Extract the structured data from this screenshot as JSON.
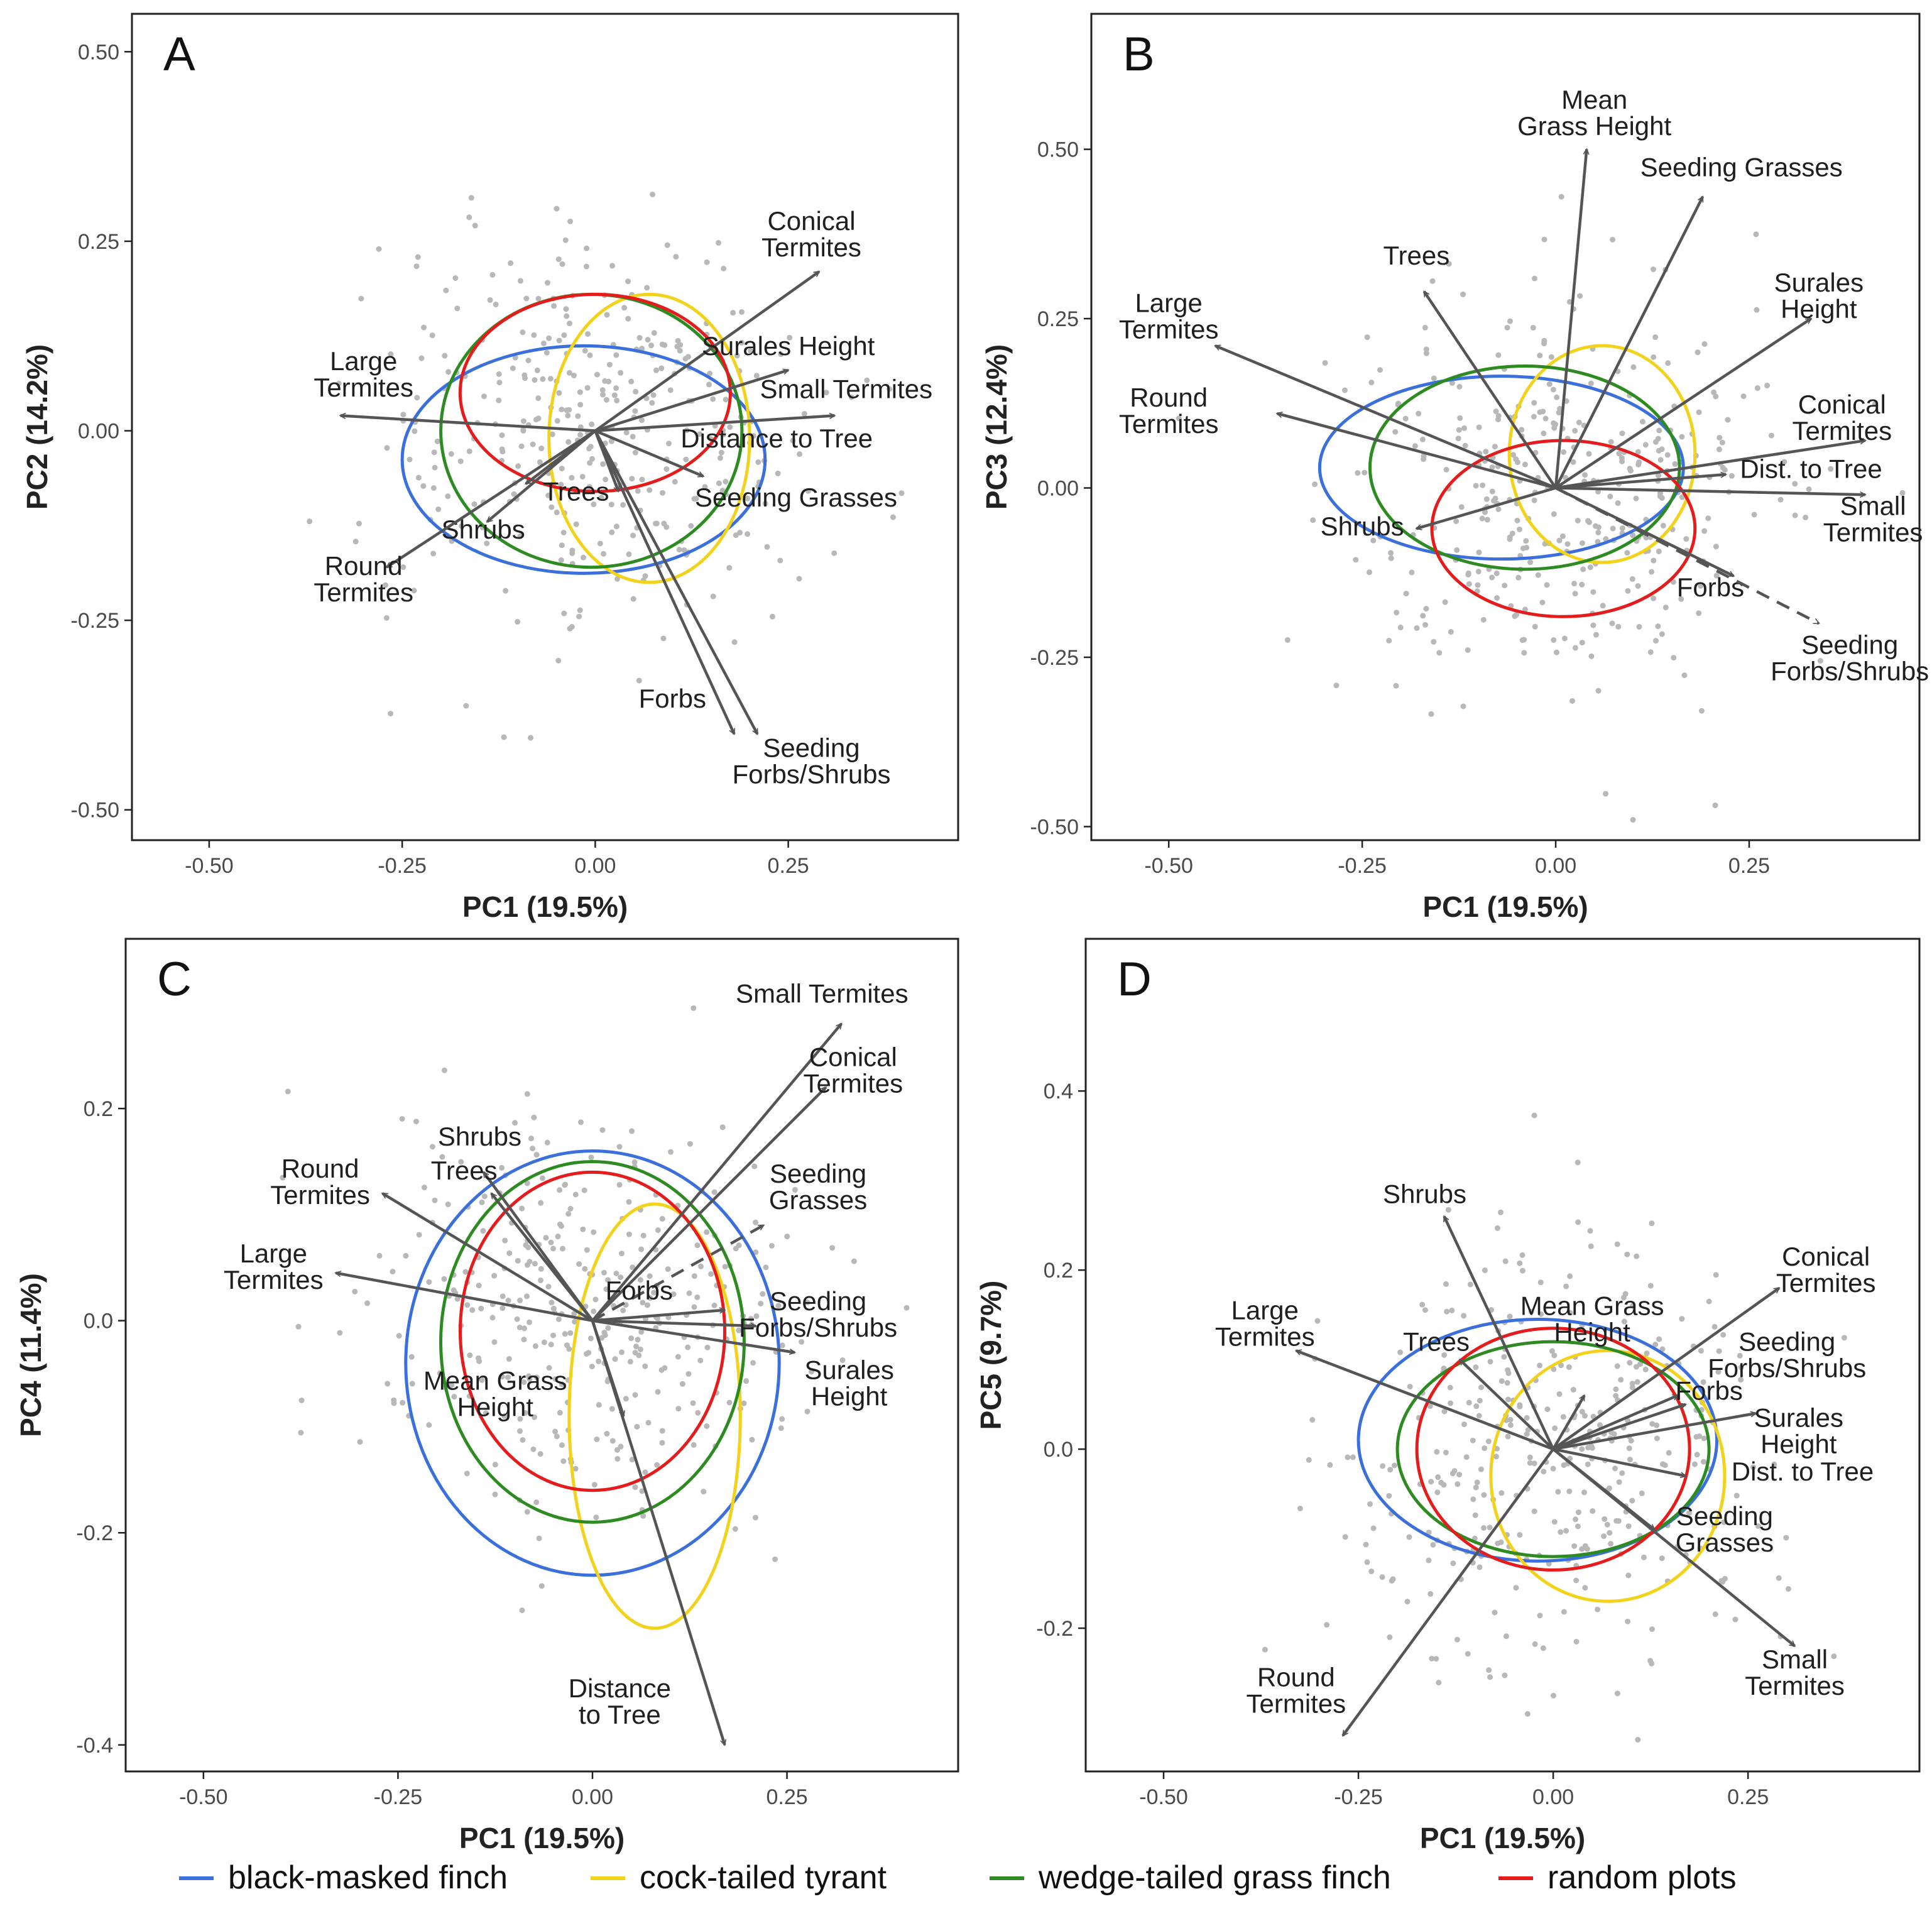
{
  "legend": {
    "items": [
      {
        "label": "black-masked finch",
        "color": "#3a6fdc"
      },
      {
        "label": "cock-tailed tyrant",
        "color": "#f2d21a"
      },
      {
        "label": "wedge-tailed grass finch",
        "color": "#2e8b22"
      },
      {
        "label": "random plots",
        "color": "#e51c1c"
      }
    ]
  },
  "colors": {
    "points": "#b8b8b8",
    "arrows": "#555555",
    "frame": "#222222"
  },
  "chart_data": [
    {
      "panel": "A",
      "type": "scatter",
      "xlabel": "PC1 (19.5%)",
      "ylabel": "PC2 (14.2%)",
      "xlim": [
        -0.6,
        0.47
      ],
      "ylim": [
        -0.54,
        0.55
      ],
      "xticks": [
        -0.5,
        -0.25,
        0.0,
        0.25
      ],
      "xtick_labels": [
        "-0.50",
        "-0.25",
        "0.00",
        "0.25"
      ],
      "yticks": [
        0.5,
        0.25,
        0.0,
        -0.25,
        -0.5
      ],
      "ytick_labels": [
        "0.50",
        "0.25",
        "0.00",
        "-0.25",
        "-0.50"
      ],
      "grid": false,
      "loadings": [
        {
          "label": "Conical\nTermites",
          "x": 0.29,
          "y": 0.21,
          "lx": 0.28,
          "ly": 0.265
        },
        {
          "label": "Surales Height",
          "x": 0.25,
          "y": 0.08,
          "lx": 0.25,
          "ly": 0.1
        },
        {
          "label": "Small Termites",
          "x": 0.31,
          "y": 0.02,
          "lx": 0.325,
          "ly": 0.043
        },
        {
          "label": "Distance to Tree",
          "x": 0.14,
          "y": -0.06,
          "lx": 0.235,
          "ly": -0.022
        },
        {
          "label": "Seeding Grasses",
          "x": 0.03,
          "y": -0.08,
          "lx": 0.26,
          "ly": -0.1
        },
        {
          "label": "Large\nTermites",
          "x": -0.33,
          "y": 0.02,
          "lx": -0.3,
          "ly": 0.08
        },
        {
          "label": "Trees",
          "x": -0.09,
          "y": -0.07,
          "lx": -0.025,
          "ly": -0.092
        },
        {
          "label": "Shrubs",
          "x": -0.14,
          "y": -0.12,
          "lx": -0.145,
          "ly": -0.142
        },
        {
          "label": "Round\nTermites",
          "x": -0.27,
          "y": -0.18,
          "lx": -0.3,
          "ly": -0.19
        },
        {
          "label": "Forbs",
          "x": 0.18,
          "y": -0.4,
          "lx": 0.1,
          "ly": -0.365
        },
        {
          "label": "Seeding\nForbs/Shrubs",
          "x": 0.21,
          "y": -0.4,
          "lx": 0.28,
          "ly": -0.43,
          "dashed": false
        }
      ],
      "ellipses": [
        {
          "group": "black-masked finch",
          "cx": -0.015,
          "cy": -0.038,
          "rx": 0.235,
          "ry": 0.15
        },
        {
          "group": "cock-tailed tyrant",
          "cx": 0.07,
          "cy": -0.01,
          "rx": 0.13,
          "ry": 0.19
        },
        {
          "group": "wedge-tailed grass finch",
          "cx": -0.005,
          "cy": 0.0,
          "rx": 0.195,
          "ry": 0.18
        },
        {
          "group": "random plots",
          "cx": 0.0,
          "cy": 0.05,
          "rx": 0.175,
          "ry": 0.13
        }
      ],
      "points_count": 360
    },
    {
      "panel": "B",
      "type": "scatter",
      "xlabel": "PC1 (19.5%)",
      "ylabel": "PC3 (12.4%)",
      "xlim": [
        -0.6,
        0.47
      ],
      "ylim": [
        -0.52,
        0.7
      ],
      "xticks": [
        -0.5,
        -0.25,
        0.0,
        0.25
      ],
      "xtick_labels": [
        "-0.50",
        "-0.25",
        "0.00",
        "0.25"
      ],
      "yticks": [
        0.5,
        0.25,
        0.0,
        -0.25,
        -0.5
      ],
      "ytick_labels": [
        "0.50",
        "0.25",
        "0.00",
        "-0.25",
        "-0.50"
      ],
      "grid": false,
      "loadings": [
        {
          "label": "Mean\nGrass Height",
          "x": 0.04,
          "y": 0.5,
          "lx": 0.05,
          "ly": 0.56
        },
        {
          "label": "Seeding Grasses",
          "x": 0.19,
          "y": 0.43,
          "lx": 0.24,
          "ly": 0.46
        },
        {
          "label": "Trees",
          "x": -0.17,
          "y": 0.29,
          "lx": -0.18,
          "ly": 0.33
        },
        {
          "label": "Surales\nHeight",
          "x": 0.33,
          "y": 0.25,
          "lx": 0.34,
          "ly": 0.29
        },
        {
          "label": "Large\nTermites",
          "x": -0.44,
          "y": 0.21,
          "lx": -0.5,
          "ly": 0.26
        },
        {
          "label": "Round\nTermites",
          "x": -0.36,
          "y": 0.11,
          "lx": -0.5,
          "ly": 0.12
        },
        {
          "label": "Conical\nTermites",
          "x": 0.4,
          "y": 0.07,
          "lx": 0.37,
          "ly": 0.11
        },
        {
          "label": "Dist. to Tree",
          "x": 0.22,
          "y": 0.02,
          "lx": 0.33,
          "ly": 0.015
        },
        {
          "label": "Small\nTermites",
          "x": 0.4,
          "y": -0.01,
          "lx": 0.41,
          "ly": -0.04
        },
        {
          "label": "Shrubs",
          "x": -0.18,
          "y": -0.06,
          "lx": -0.25,
          "ly": -0.07
        },
        {
          "label": "Forbs",
          "x": 0.23,
          "y": -0.13,
          "lx": 0.2,
          "ly": -0.16
        },
        {
          "label": "Seeding\nForbs/Shrubs",
          "x": 0.34,
          "y": -0.2,
          "lx": 0.38,
          "ly": -0.245,
          "dashed": true
        }
      ],
      "ellipses": [
        {
          "group": "black-masked finch",
          "cx": -0.07,
          "cy": 0.03,
          "rx": 0.235,
          "ry": 0.135
        },
        {
          "group": "cock-tailed tyrant",
          "cx": 0.06,
          "cy": 0.05,
          "rx": 0.12,
          "ry": 0.16
        },
        {
          "group": "wedge-tailed grass finch",
          "cx": -0.04,
          "cy": 0.03,
          "rx": 0.2,
          "ry": 0.15
        },
        {
          "group": "random plots",
          "cx": 0.01,
          "cy": -0.06,
          "rx": 0.17,
          "ry": 0.13
        }
      ],
      "points_count": 360
    },
    {
      "panel": "C",
      "type": "scatter",
      "xlabel": "PC1 (19.5%)",
      "ylabel": "PC4 (11.4%)",
      "xlim": [
        -0.6,
        0.47
      ],
      "ylim": [
        -0.425,
        0.36
      ],
      "xticks": [
        -0.5,
        -0.25,
        0.0,
        0.25
      ],
      "xtick_labels": [
        "-0.50",
        "-0.25",
        "0.00",
        "0.25"
      ],
      "yticks": [
        0.2,
        0.0,
        -0.2,
        -0.4
      ],
      "ytick_labels": [
        "0.2",
        "0.0",
        "-0.2",
        "-0.4"
      ],
      "grid": false,
      "loadings": [
        {
          "label": "Small Termites",
          "x": 0.32,
          "y": 0.28,
          "lx": 0.295,
          "ly": 0.3
        },
        {
          "label": "Conical\nTermites",
          "x": 0.3,
          "y": 0.22,
          "lx": 0.335,
          "ly": 0.24
        },
        {
          "label": "Seeding\nGrasses",
          "x": 0.22,
          "y": 0.09,
          "lx": 0.29,
          "ly": 0.13,
          "dashed": true
        },
        {
          "label": "Round\nTermites",
          "x": -0.27,
          "y": 0.12,
          "lx": -0.35,
          "ly": 0.135
        },
        {
          "label": "Shrubs",
          "x": -0.14,
          "y": 0.14,
          "lx": -0.145,
          "ly": 0.165
        },
        {
          "label": "Trees",
          "x": -0.13,
          "y": 0.12,
          "lx": -0.165,
          "ly": 0.133
        },
        {
          "label": "Large\nTermites",
          "x": -0.33,
          "y": 0.045,
          "lx": -0.41,
          "ly": 0.055
        },
        {
          "label": "Forbs",
          "x": 0.17,
          "y": 0.01,
          "lx": 0.06,
          "ly": 0.02
        },
        {
          "label": "Seeding\nForbs/Shrubs",
          "x": 0.21,
          "y": -0.005,
          "lx": 0.29,
          "ly": 0.01
        },
        {
          "label": "Surales\nHeight",
          "x": 0.26,
          "y": -0.03,
          "lx": 0.33,
          "ly": -0.055
        },
        {
          "label": "Mean Grass\nHeight",
          "x": 0.04,
          "y": -0.09,
          "lx": -0.125,
          "ly": -0.065
        },
        {
          "label": "Distance\nto Tree",
          "x": 0.17,
          "y": -0.4,
          "lx": 0.035,
          "ly": -0.355
        }
      ],
      "ellipses": [
        {
          "group": "black-masked finch",
          "cx": 0.0,
          "cy": -0.04,
          "rx": 0.24,
          "ry": 0.2
        },
        {
          "group": "cock-tailed tyrant",
          "cx": 0.08,
          "cy": -0.09,
          "rx": 0.11,
          "ry": 0.2
        },
        {
          "group": "wedge-tailed grass finch",
          "cx": 0.0,
          "cy": -0.02,
          "rx": 0.195,
          "ry": 0.17
        },
        {
          "group": "random plots",
          "cx": 0.0,
          "cy": -0.01,
          "rx": 0.17,
          "ry": 0.15
        }
      ],
      "points_count": 360
    },
    {
      "panel": "D",
      "type": "scatter",
      "xlabel": "PC1 (19.5%)",
      "ylabel": "PC5 (9.7%)",
      "xlim": [
        -0.6,
        0.47
      ],
      "ylim": [
        -0.36,
        0.57
      ],
      "xticks": [
        -0.5,
        -0.25,
        0.0,
        0.25
      ],
      "xtick_labels": [
        "-0.50",
        "-0.25",
        "0.00",
        "0.25"
      ],
      "yticks": [
        0.4,
        0.2,
        0.0,
        -0.2
      ],
      "ytick_labels": [
        "0.4",
        "0.2",
        "0.0",
        "-0.2"
      ],
      "grid": false,
      "loadings": [
        {
          "label": "Shrubs",
          "x": -0.14,
          "y": 0.26,
          "lx": -0.165,
          "ly": 0.275
        },
        {
          "label": "Conical\nTermites",
          "x": 0.29,
          "y": 0.18,
          "lx": 0.35,
          "ly": 0.205
        },
        {
          "label": "Large\nTermites",
          "x": -0.33,
          "y": 0.11,
          "lx": -0.37,
          "ly": 0.145
        },
        {
          "label": "Trees",
          "x": -0.12,
          "y": 0.1,
          "lx": -0.15,
          "ly": 0.11
        },
        {
          "label": "Mean Grass\nHeight",
          "x": 0.04,
          "y": 0.06,
          "lx": 0.05,
          "ly": 0.15
        },
        {
          "label": "Seeding\nForbs/Shrubs",
          "x": 0.16,
          "y": 0.06,
          "lx": 0.3,
          "ly": 0.11
        },
        {
          "label": "Forbs",
          "x": 0.17,
          "y": 0.05,
          "lx": 0.2,
          "ly": 0.055
        },
        {
          "label": "Surales\nHeight",
          "x": 0.26,
          "y": 0.04,
          "lx": 0.315,
          "ly": 0.025
        },
        {
          "label": "Dist. to Tree",
          "x": 0.17,
          "y": -0.03,
          "lx": 0.32,
          "ly": -0.035
        },
        {
          "label": "Seeding\nGrasses",
          "x": 0.13,
          "y": -0.09,
          "lx": 0.22,
          "ly": -0.085
        },
        {
          "label": "Small\nTermites",
          "x": 0.31,
          "y": -0.22,
          "lx": 0.31,
          "ly": -0.245
        },
        {
          "label": "Round\nTermites",
          "x": -0.27,
          "y": -0.32,
          "lx": -0.33,
          "ly": -0.265
        }
      ],
      "ellipses": [
        {
          "group": "black-masked finch",
          "cx": -0.02,
          "cy": 0.01,
          "rx": 0.23,
          "ry": 0.135
        },
        {
          "group": "cock-tailed tyrant",
          "cx": 0.07,
          "cy": -0.03,
          "rx": 0.15,
          "ry": 0.14
        },
        {
          "group": "wedge-tailed grass finch",
          "cx": 0.0,
          "cy": 0.0,
          "rx": 0.2,
          "ry": 0.12
        },
        {
          "group": "random plots",
          "cx": 0.0,
          "cy": 0.0,
          "rx": 0.175,
          "ry": 0.135
        }
      ],
      "points_count": 360
    }
  ]
}
